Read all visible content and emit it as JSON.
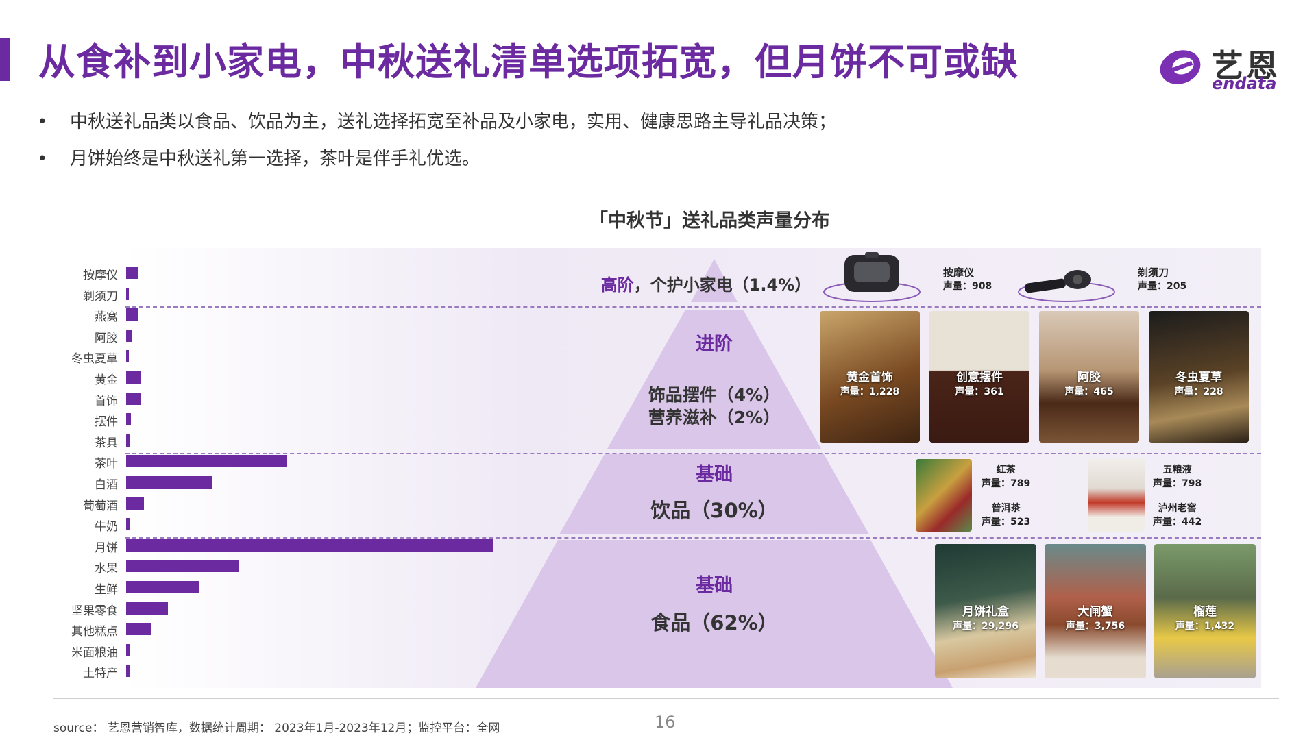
{
  "header": {
    "title": "从食补到小家电，中秋送礼清单选项拓宽，但月饼不可或缺",
    "logo_cn": "艺恩",
    "logo_en": "endata"
  },
  "bullets": [
    "中秋送礼品类以食品、饮品为主，送礼选择拓宽至补品及小家电，实用、健康思路主导礼品决策；",
    "月饼始终是中秋送礼第一选择，茶叶是伴手礼优选。"
  ],
  "chart_data": {
    "type": "bar",
    "title": "「中秋节」送礼品类声量分布",
    "categories": [
      "按摩仪",
      "剃须刀",
      "燕窝",
      "阿胶",
      "冬虫夏草",
      "黄金",
      "首饰",
      "摆件",
      "茶具",
      "茶叶",
      "白酒",
      "葡萄酒",
      "牛奶",
      "月饼",
      "水果",
      "生鲜",
      "坚果零食",
      "其他糕点",
      "米面粮油",
      "土特产"
    ],
    "values": [
      908,
      205,
      950,
      465,
      228,
      1228,
      1180,
      361,
      300,
      12800,
      6900,
      1400,
      300,
      29296,
      9000,
      5800,
      3350,
      2000,
      300,
      300
    ],
    "xlim": [
      0,
      30000
    ],
    "bar_color": "#6b2aa0"
  },
  "pyramid": {
    "tiers": [
      {
        "head": "高阶",
        "sep": "，",
        "desc": "个护小家电（1.4%）"
      },
      {
        "head": "进阶",
        "lines": [
          "饰品摆件（4%）",
          "营养滋补（2%）"
        ]
      },
      {
        "head": "基础",
        "lines": [
          "饮品（30%）"
        ]
      },
      {
        "head": "基础",
        "lines": [
          "食品（62%）"
        ]
      }
    ],
    "colors": {
      "fill": "#d9c6e8",
      "fill_light": "#e3d5ef",
      "accent": "#6b2aa0"
    }
  },
  "items": {
    "massager": {
      "name": "按摩仪",
      "value": "声量：908"
    },
    "shaver": {
      "name": "剃须刀",
      "value": "声量：205"
    },
    "gold": {
      "name": "黄金首饰",
      "value": "声量：1,228"
    },
    "ornament": {
      "name": "创意摆件",
      "value": "声量：361"
    },
    "ejiao": {
      "name": "阿胶",
      "value": "声量：465"
    },
    "cordyceps": {
      "name": "冬虫夏草",
      "value": "声量：228"
    },
    "redtea": {
      "name": "红茶",
      "value": "声量：789"
    },
    "puer": {
      "name": "普洱茶",
      "value": "声量：523"
    },
    "wuliangye": {
      "name": "五粮液",
      "value": "声量：798"
    },
    "luzhou": {
      "name": "泸州老窖",
      "value": "声量：442"
    },
    "mooncake": {
      "name": "月饼礼盒",
      "value": "声量：29,296"
    },
    "crab": {
      "name": "大闸蟹",
      "value": "声量：3,756"
    },
    "durian": {
      "name": "榴莲",
      "value": "声量：1,432"
    }
  },
  "footer": {
    "source": "source： 艺恩营销智库，数据统计周期： 2023年1月-2023年12月；监控平台：全网",
    "page_number": "16"
  }
}
